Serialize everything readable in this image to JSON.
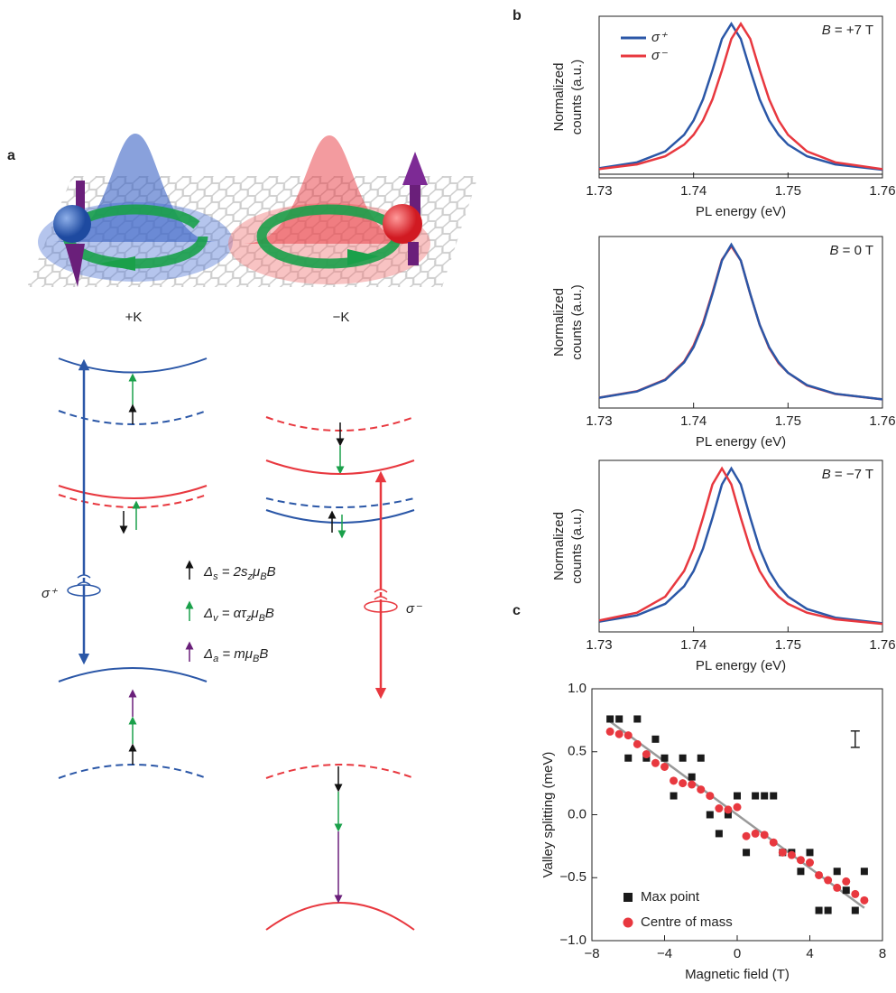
{
  "panels": [
    "a",
    "b",
    "c"
  ],
  "diagram": {
    "k_plus": "+K",
    "k_minus": "−K",
    "sigma_plus": "σ⁺",
    "sigma_minus": "σ⁻",
    "legend": [
      [
        "Δ",
        "s",
        " = 2s",
        "z",
        "μ",
        "B",
        "B"
      ],
      [
        "Δ",
        "v",
        " = ατ",
        "z",
        "μ",
        "B",
        "B"
      ],
      [
        "Δ",
        "a",
        " = mμ",
        "B",
        "B"
      ]
    ]
  },
  "chart_data": [
    {
      "type": "line",
      "annotation": [
        "B",
        " = +7 T"
      ],
      "x_label": "PL energy (eV)",
      "y_label": [
        "Normalized",
        "counts (a.u.)"
      ],
      "x": [
        1.73,
        1.734,
        1.737,
        1.739,
        1.74,
        1.741,
        1.742,
        1.743,
        1.744,
        1.745,
        1.746,
        1.747,
        1.748,
        1.749,
        1.75,
        1.752,
        1.755,
        1.76
      ],
      "xlim": [
        1.73,
        1.76
      ],
      "xticks": [
        1.73,
        1.74,
        1.75,
        1.76
      ],
      "ylim": [
        -0.02,
        1.05
      ],
      "series": [
        {
          "name": "σ⁺",
          "color": "#2b57a7",
          "values": [
            0.044,
            0.083,
            0.155,
            0.265,
            0.36,
            0.5,
            0.692,
            0.9,
            1,
            0.9,
            0.692,
            0.5,
            0.36,
            0.265,
            0.2,
            0.123,
            0.069,
            0.034
          ]
        },
        {
          "name": "σ⁻",
          "color": "#e8383f",
          "values": [
            0.038,
            0.069,
            0.123,
            0.2,
            0.265,
            0.36,
            0.5,
            0.692,
            0.9,
            1,
            0.9,
            0.692,
            0.5,
            0.36,
            0.265,
            0.155,
            0.083,
            0.038
          ]
        }
      ]
    },
    {
      "type": "line",
      "annotation": [
        "B",
        " = 0 T"
      ],
      "x_label": "PL energy (eV)",
      "y_label": [
        "Normalized",
        "counts (a.u.)"
      ],
      "x": [
        1.73,
        1.734,
        1.737,
        1.739,
        1.74,
        1.741,
        1.742,
        1.743,
        1.744,
        1.745,
        1.746,
        1.747,
        1.748,
        1.749,
        1.75,
        1.752,
        1.755,
        1.76
      ],
      "xlim": [
        1.73,
        1.76
      ],
      "xticks": [
        1.73,
        1.74,
        1.75,
        1.76
      ],
      "ylim": [
        -0.02,
        1.05
      ],
      "series": [
        {
          "color": "#e8383f",
          "values": [
            0.045,
            0.085,
            0.158,
            0.27,
            0.37,
            0.51,
            0.7,
            0.905,
            0.99,
            0.9,
            0.69,
            0.5,
            0.355,
            0.26,
            0.2,
            0.12,
            0.068,
            0.034
          ]
        },
        {
          "color": "#2b57a7",
          "values": [
            0.044,
            0.083,
            0.155,
            0.265,
            0.36,
            0.5,
            0.692,
            0.9,
            1,
            0.9,
            0.692,
            0.5,
            0.36,
            0.265,
            0.2,
            0.123,
            0.069,
            0.034
          ]
        }
      ]
    },
    {
      "type": "line",
      "annotation": [
        "B",
        " = −7 T"
      ],
      "x_label": "PL energy (eV)",
      "y_label": [
        "Normalized",
        "counts (a.u.)"
      ],
      "x": [
        1.73,
        1.734,
        1.737,
        1.739,
        1.74,
        1.741,
        1.742,
        1.743,
        1.744,
        1.745,
        1.746,
        1.747,
        1.748,
        1.749,
        1.75,
        1.752,
        1.755,
        1.76
      ],
      "xlim": [
        1.73,
        1.76
      ],
      "xticks": [
        1.73,
        1.74,
        1.75,
        1.76
      ],
      "ylim": [
        -0.02,
        1.05
      ],
      "series": [
        {
          "color": "#2b57a7",
          "values": [
            0.044,
            0.083,
            0.155,
            0.265,
            0.36,
            0.5,
            0.692,
            0.9,
            1,
            0.9,
            0.692,
            0.5,
            0.36,
            0.265,
            0.2,
            0.123,
            0.069,
            0.034
          ]
        },
        {
          "color": "#e8383f",
          "values": [
            0.051,
            0.1,
            0.2,
            0.36,
            0.5,
            0.692,
            0.9,
            1,
            0.9,
            0.692,
            0.5,
            0.36,
            0.265,
            0.2,
            0.155,
            0.1,
            0.059,
            0.03
          ]
        }
      ]
    },
    {
      "type": "scatter",
      "x_label": "Magnetic field (T)",
      "y_label": "Valley splitting (meV)",
      "x": [
        -7,
        -6.5,
        -6,
        -5.5,
        -5,
        -4.5,
        -4,
        -3.5,
        -3,
        -2.5,
        -2,
        -1.5,
        -1,
        -0.5,
        0,
        0.5,
        1,
        1.5,
        2,
        2.5,
        3,
        3.5,
        4,
        4.5,
        5,
        5.5,
        6,
        6.5,
        7
      ],
      "xlim": [
        -8,
        8
      ],
      "xticks": [
        {
          "value": -8,
          "label": "−8"
        },
        {
          "value": -4,
          "label": "−4"
        },
        0,
        4,
        8
      ],
      "ylim": [
        -1,
        1
      ],
      "yticks": [
        {
          "value": -1,
          "label": "−1.0"
        },
        {
          "value": -0.5,
          "label": "−0.5"
        },
        {
          "value": 0,
          "label": "0.0"
        },
        {
          "value": 0.5,
          "label": "0.5"
        },
        {
          "value": 1,
          "label": "1.0"
        }
      ],
      "series": [
        {
          "name": "Max point",
          "color": "#1a1a1a",
          "marker": "square",
          "values": [
            0.76,
            0.76,
            0.45,
            0.76,
            0.45,
            0.6,
            0.45,
            0.15,
            0.45,
            0.3,
            0.45,
            0,
            -0.15,
            0,
            0.15,
            -0.3,
            0.15,
            0.15,
            0.15,
            -0.3,
            -0.3,
            -0.45,
            -0.3,
            -0.76,
            -0.76,
            -0.45,
            -0.6,
            -0.76,
            -0.45
          ]
        },
        {
          "name": "Centre of mass",
          "color": "#e8383f",
          "marker": "circle",
          "values": [
            0.66,
            0.64,
            0.63,
            0.56,
            0.48,
            0.41,
            0.38,
            0.27,
            0.25,
            0.24,
            0.2,
            0.15,
            0.05,
            0.04,
            0.06,
            -0.17,
            -0.15,
            -0.16,
            -0.22,
            -0.3,
            -0.32,
            -0.36,
            -0.38,
            -0.48,
            -0.52,
            -0.58,
            -0.53,
            -0.63,
            -0.68
          ]
        }
      ],
      "fit": {
        "color": "#999999",
        "x": [
          -7,
          7
        ],
        "values": [
          0.74,
          -0.74
        ]
      },
      "error_bar": {
        "x": 6.5,
        "value": 0.6,
        "error": 0.065
      }
    }
  ]
}
